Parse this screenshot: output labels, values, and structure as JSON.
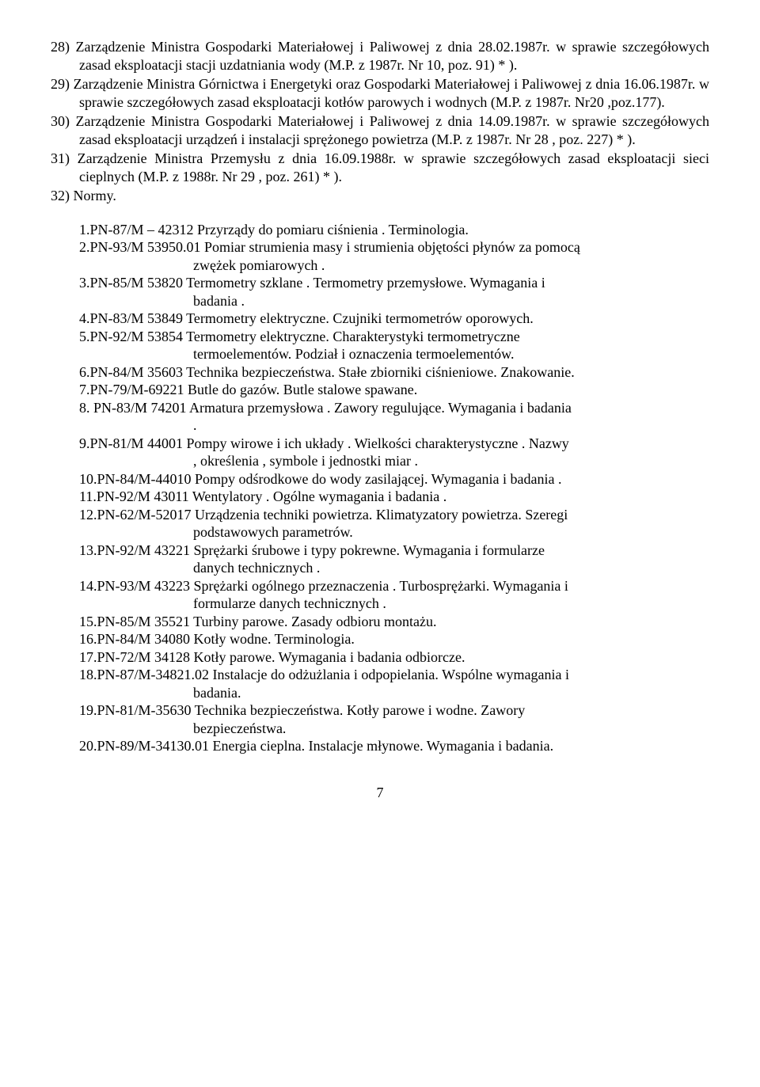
{
  "items28": "28) Zarządzenie Ministra Gospodarki Materiałowej i Paliwowej z dnia 28.02.1987r. w sprawie szczegółowych zasad eksploatacji stacji uzdatniania wody (M.P. z 1987r. Nr 10, poz. 91) * ).",
  "items29": "29) Zarządzenie Ministra Górnictwa i Energetyki oraz Gospodarki Materiałowej i Paliwowej z dnia 16.06.1987r. w sprawie szczegółowych zasad eksploatacji kotłów parowych i wodnych (M.P. z 1987r. Nr20 ,poz.177).",
  "items30": "30) Zarządzenie Ministra Gospodarki Materiałowej i Paliwowej z dnia 14.09.1987r. w sprawie szczegółowych zasad eksploatacji urządzeń i instalacji sprężonego powietrza (M.P. z 1987r. Nr 28 , poz. 227) * ).",
  "items31": "31) Zarządzenie Ministra Przemysłu z dnia 16.09.1988r. w sprawie szczegółowych zasad eksploatacji sieci cieplnych (M.P. z 1988r. Nr 29 , poz. 261) * ).",
  "items32": "32) Normy.",
  "norms": {
    "n1": "1.PN-87/M – 42312  Przyrządy do pomiaru ciśnienia . Terminologia.",
    "n2a": "2.PN-93/M 53950.01 Pomiar strumienia masy i strumienia objętości płynów za pomocą",
    "n2b": "zwężek pomiarowych .",
    "n3a": "3.PN-85/M 53820     Termometry szklane . Termometry przemysłowe. Wymagania i",
    "n3b": "badania .",
    "n4": "4.PN-83/M 53849     Termometry elektryczne. Czujniki termometrów oporowych.",
    "n5a": "5.PN-92/M 53854     Termometry   elektryczne.   Charakterystyki   termometryczne",
    "n5b": "termoelementów. Podział i oznaczenia termoelementów.",
    "n6": "6.PN-84/M 35603 Technika bezpieczeństwa. Stałe zbiorniki ciśnieniowe. Znakowanie.",
    "n7": "7.PN-79/M-69221     Butle do gazów. Butle stalowe spawane.",
    "n8": "8. PN-83/M 74201   Armatura  przemysłowa . Zawory regulujące. Wymagania i badania",
    "n8b": ".",
    "n9a": "9.PN-81/M 44001     Pompy wirowe i ich układy . Wielkości charakterystyczne . Nazwy",
    "n9b": ", określenia , symbole i jednostki miar .",
    "n10": "10.PN-84/M-44010  Pompy odśrodkowe do wody zasilającej. Wymagania i badania .",
    "n11": "11.PN-92/M 43011    Wentylatory . Ogólne wymagania i badania .",
    "n12a": "12.PN-62/M-52017   Urządzenia techniki powietrza. Klimatyzatory powietrza. Szeregi",
    "n12b": "podstawowych parametrów.",
    "n13a": "13.PN-92/M 43221    Sprężarki śrubowe i typy pokrewne. Wymagania i formularze",
    "n13b": "danych technicznych .",
    "n14a": "14.PN-93/M 43223  Sprężarki ogólnego przeznaczenia . Turbosprężarki. Wymagania i",
    "n14b": "formularze danych technicznych .",
    "n15": "15.PN-85/M 35521    Turbiny parowe. Zasady odbioru montażu.",
    "n16": "16.PN-84/M 34080    Kotły wodne. Terminologia.",
    "n17": "17.PN-72/M 34128    Kotły parowe. Wymagania i badania odbiorcze.",
    "n18a": "18.PN-87/M-34821.02 Instalacje do odżużlania i odpopielania. Wspólne wymagania i",
    "n18b": "badania.",
    "n19a": "19.PN-81/M-35630      Technika  bezpieczeństwa.  Kotły  parowe  i  wodne.  Zawory",
    "n19b": "bezpieczeństwa.",
    "n20": "20.PN-89/M-34130.01 Energia cieplna. Instalacje młynowe. Wymagania i badania."
  },
  "page_number": "7"
}
